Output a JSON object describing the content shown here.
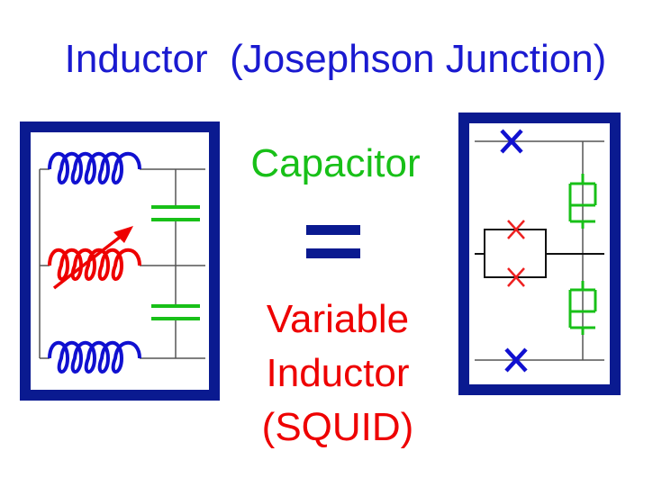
{
  "title": "Inductor  (Josephson Junction)",
  "label_capacitor": "Capacitor",
  "label_variable_lines": [
    "Variable",
    "Inductor",
    "(SQUID)"
  ],
  "colors": {
    "title": "#1a1ad0",
    "capacitor": "#18c018",
    "variable": "#ee0000",
    "frame": "#0a1a90",
    "inductor": "#1010d0",
    "wire": "#555555",
    "junction_small": "#ee2020",
    "junction_large": "#1010d0"
  },
  "icons": {
    "left_circuit": "lc-circuit-icon",
    "right_circuit": "squid-circuit-icon",
    "equals": "equals-sign-icon"
  }
}
